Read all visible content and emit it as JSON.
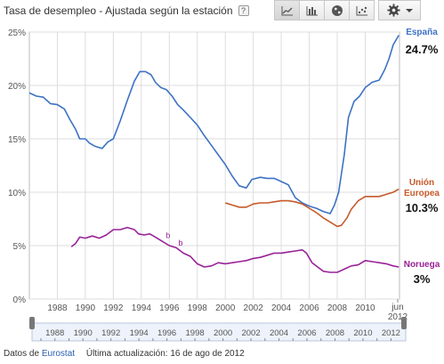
{
  "header": {
    "title": "Tasa de desempleo - Ajustada según la estación",
    "help_label": "?"
  },
  "toolbar": {
    "buttons": [
      {
        "icon": "line-chart-icon"
      },
      {
        "icon": "bar-chart-icon"
      },
      {
        "icon": "map-globe-icon"
      },
      {
        "icon": "scatter-chart-icon"
      }
    ],
    "settings_icon": "gear-icon"
  },
  "footer": {
    "source_prefix": "Datos de",
    "source_link": "Eurostat",
    "updated": "Última actualización: 16 de ago de 2012"
  },
  "chart_data": {
    "type": "line",
    "title": "Tasa de desempleo - Ajustada según la estación",
    "xlim": [
      1986,
      2012.45
    ],
    "ylim": [
      0,
      25
    ],
    "y_ticks": [
      "0%",
      "5%",
      "10%",
      "15%",
      "20%",
      "25%"
    ],
    "x_ticks": [
      "1988",
      "1990",
      "1992",
      "1994",
      "1996",
      "1998",
      "2000",
      "2002",
      "2004",
      "2006",
      "2008",
      "2010"
    ],
    "x_end_label": [
      "jun",
      "2012"
    ],
    "grid": true,
    "annotations": [
      {
        "text": "b",
        "x": 1995.9,
        "y": 5.7
      },
      {
        "text": "b",
        "x": 1996.8,
        "y": 5.0
      }
    ],
    "series": [
      {
        "name": "España",
        "end_label": "24.7%",
        "color": "#3d72c5",
        "points": [
          [
            1986,
            19.3
          ],
          [
            1986.5,
            19.0
          ],
          [
            1987,
            18.9
          ],
          [
            1987.5,
            18.3
          ],
          [
            1988,
            18.2
          ],
          [
            1988.5,
            17.8
          ],
          [
            1988.9,
            16.8
          ],
          [
            1989.3,
            15.9
          ],
          [
            1989.6,
            15.0
          ],
          [
            1990,
            15.0
          ],
          [
            1990.3,
            14.6
          ],
          [
            1990.7,
            14.3
          ],
          [
            1991.2,
            14.1
          ],
          [
            1991.6,
            14.7
          ],
          [
            1992,
            15.0
          ],
          [
            1992.5,
            16.7
          ],
          [
            1993,
            18.6
          ],
          [
            1993.5,
            20.4
          ],
          [
            1993.9,
            21.3
          ],
          [
            1994.3,
            21.3
          ],
          [
            1994.7,
            21.0
          ],
          [
            1995,
            20.3
          ],
          [
            1995.4,
            19.8
          ],
          [
            1995.8,
            19.6
          ],
          [
            1996.2,
            19.0
          ],
          [
            1996.6,
            18.2
          ],
          [
            1997,
            17.7
          ],
          [
            1997.5,
            17.0
          ],
          [
            1998,
            16.3
          ],
          [
            1998.5,
            15.3
          ],
          [
            1999,
            14.4
          ],
          [
            1999.5,
            13.5
          ],
          [
            2000,
            12.6
          ],
          [
            2000.5,
            11.5
          ],
          [
            2001,
            10.6
          ],
          [
            2001.5,
            10.4
          ],
          [
            2001.9,
            11.2
          ],
          [
            2002.5,
            11.4
          ],
          [
            2003,
            11.3
          ],
          [
            2003.5,
            11.3
          ],
          [
            2004,
            11.0
          ],
          [
            2004.5,
            10.7
          ],
          [
            2005,
            9.5
          ],
          [
            2005.5,
            9.0
          ],
          [
            2006,
            8.7
          ],
          [
            2006.5,
            8.5
          ],
          [
            2007,
            8.2
          ],
          [
            2007.5,
            8.0
          ],
          [
            2007.8,
            8.8
          ],
          [
            2008.1,
            10.0
          ],
          [
            2008.5,
            13.5
          ],
          [
            2008.8,
            17.0
          ],
          [
            2009.2,
            18.5
          ],
          [
            2009.6,
            19.0
          ],
          [
            2010,
            19.8
          ],
          [
            2010.5,
            20.3
          ],
          [
            2011,
            20.5
          ],
          [
            2011.4,
            21.5
          ],
          [
            2011.7,
            22.5
          ],
          [
            2012,
            23.8
          ],
          [
            2012.4,
            24.7
          ]
        ]
      },
      {
        "name": "Unión Europea",
        "end_label": "10.3%",
        "color": "#c55a2a",
        "points": [
          [
            2000,
            9.0
          ],
          [
            2000.5,
            8.8
          ],
          [
            2001,
            8.6
          ],
          [
            2001.5,
            8.6
          ],
          [
            2002,
            8.9
          ],
          [
            2002.5,
            9.0
          ],
          [
            2003,
            9.0
          ],
          [
            2003.5,
            9.1
          ],
          [
            2004,
            9.2
          ],
          [
            2004.5,
            9.2
          ],
          [
            2005,
            9.1
          ],
          [
            2005.5,
            8.9
          ],
          [
            2006,
            8.5
          ],
          [
            2006.5,
            8.1
          ],
          [
            2007,
            7.6
          ],
          [
            2007.5,
            7.2
          ],
          [
            2008,
            6.8
          ],
          [
            2008.3,
            6.9
          ],
          [
            2008.7,
            7.6
          ],
          [
            2009,
            8.4
          ],
          [
            2009.5,
            9.2
          ],
          [
            2010,
            9.6
          ],
          [
            2010.5,
            9.6
          ],
          [
            2011,
            9.6
          ],
          [
            2011.5,
            9.8
          ],
          [
            2012,
            10.0
          ],
          [
            2012.4,
            10.3
          ]
        ]
      },
      {
        "name": "Noruega",
        "end_label": "3%",
        "color": "#992299",
        "points": [
          [
            1989,
            4.9
          ],
          [
            1989.3,
            5.2
          ],
          [
            1989.6,
            5.8
          ],
          [
            1990,
            5.7
          ],
          [
            1990.5,
            5.9
          ],
          [
            1991,
            5.7
          ],
          [
            1991.5,
            6.0
          ],
          [
            1992,
            6.5
          ],
          [
            1992.5,
            6.5
          ],
          [
            1993,
            6.7
          ],
          [
            1993.5,
            6.5
          ],
          [
            1993.8,
            6.1
          ],
          [
            1994.2,
            6.0
          ],
          [
            1994.6,
            6.1
          ],
          [
            1995,
            5.8
          ],
          [
            1995.5,
            5.4
          ],
          [
            1996,
            5.0
          ],
          [
            1996.5,
            4.8
          ],
          [
            1997,
            4.3
          ],
          [
            1997.5,
            4.0
          ],
          [
            1998,
            3.3
          ],
          [
            1998.5,
            3.0
          ],
          [
            1999,
            3.1
          ],
          [
            1999.5,
            3.4
          ],
          [
            2000,
            3.3
          ],
          [
            2000.5,
            3.4
          ],
          [
            2001,
            3.5
          ],
          [
            2001.5,
            3.6
          ],
          [
            2002,
            3.8
          ],
          [
            2002.5,
            3.9
          ],
          [
            2003,
            4.1
          ],
          [
            2003.5,
            4.3
          ],
          [
            2004,
            4.3
          ],
          [
            2004.5,
            4.4
          ],
          [
            2005,
            4.5
          ],
          [
            2005.5,
            4.6
          ],
          [
            2005.8,
            4.3
          ],
          [
            2006.2,
            3.4
          ],
          [
            2006.6,
            3.0
          ],
          [
            2007,
            2.6
          ],
          [
            2007.5,
            2.5
          ],
          [
            2008,
            2.5
          ],
          [
            2008.5,
            2.8
          ],
          [
            2009,
            3.1
          ],
          [
            2009.5,
            3.2
          ],
          [
            2010,
            3.6
          ],
          [
            2010.5,
            3.5
          ],
          [
            2011,
            3.4
          ],
          [
            2011.5,
            3.3
          ],
          [
            2012,
            3.1
          ],
          [
            2012.4,
            3.0
          ]
        ]
      }
    ],
    "navigator": {
      "ticks": [
        "1988",
        "1990",
        "1992",
        "1994",
        "1996",
        "1998",
        "2000",
        "2002",
        "2004",
        "2006",
        "2008",
        "2010",
        "2012"
      ]
    }
  }
}
